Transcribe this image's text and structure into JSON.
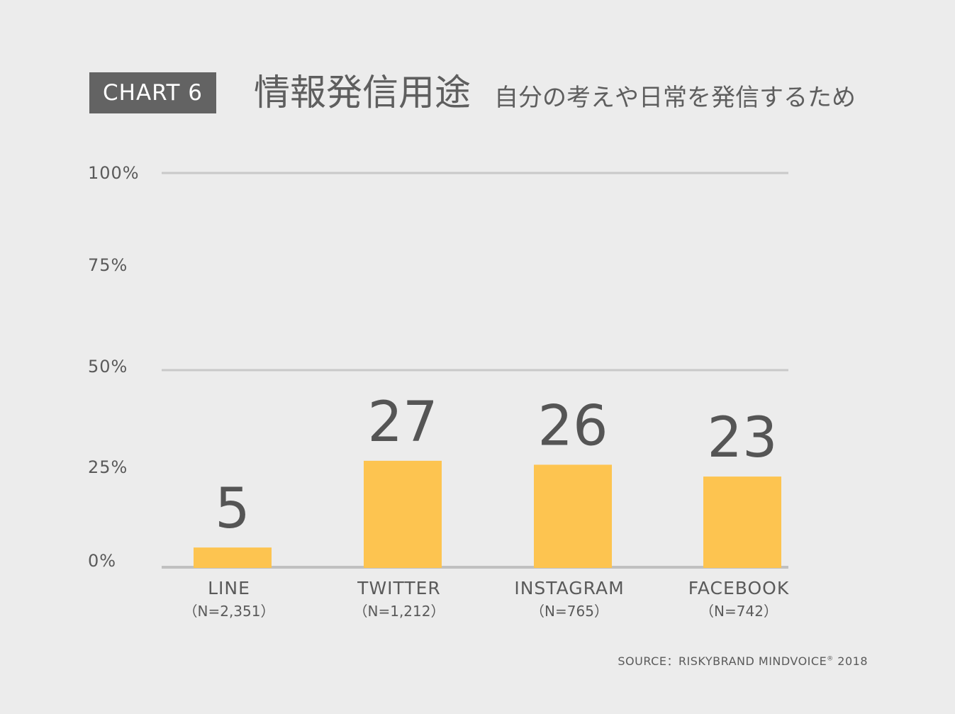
{
  "header": {
    "badge": "CHART 6",
    "title": "情報発信用途",
    "subtitle": "自分の考えや日常を発信するため"
  },
  "source": {
    "prefix": "SOURCE：RISKYBRAND MINDVOICE",
    "mark": "®",
    "year": "2018"
  },
  "colors": {
    "bar": "#fdc450",
    "gridline": "#c9c9c9",
    "baseline": "#c0c0c0",
    "text": "#5a5a5a",
    "value_text": "#555555"
  },
  "chart_data": {
    "type": "bar",
    "categories": [
      "LINE",
      "TWITTER",
      "INSTAGRAM",
      "FACEBOOK"
    ],
    "sample_sizes": [
      "（N=2,351）",
      "（N=1,212）",
      "（N=765）",
      "（N=742）"
    ],
    "values": [
      5,
      27,
      26,
      23
    ],
    "value_labels": [
      "5",
      "27",
      "26",
      "23"
    ],
    "ylim": [
      0,
      100
    ],
    "yticks": [
      0,
      25,
      50,
      75,
      100
    ],
    "ytick_labels": [
      "0%",
      "25%",
      "50%",
      "75%",
      "100%"
    ],
    "gridlines_at": [
      0,
      50,
      100
    ],
    "xlabel": "",
    "ylabel": ""
  }
}
